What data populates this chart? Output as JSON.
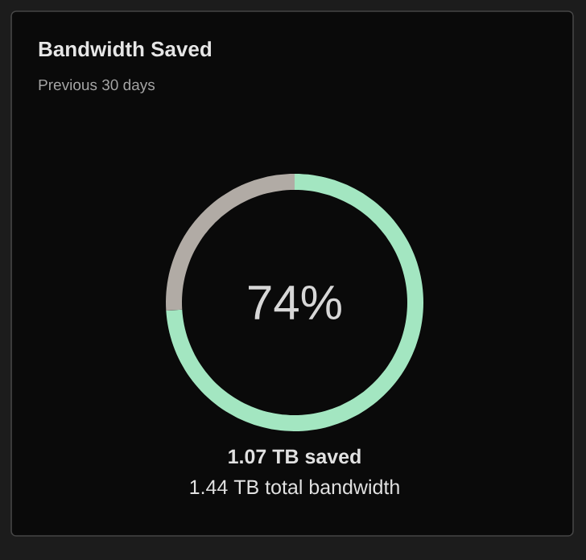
{
  "chart_data": {
    "type": "donut",
    "title": "Bandwidth Saved",
    "subtitle": "Previous 30 days",
    "categories": [
      null,
      null
    ],
    "values": [
      74,
      26
    ],
    "colors": [
      "#a3e6c1",
      "#b1aba5"
    ],
    "value_labels": [
      "74%",
      null
    ],
    "annotations": [
      "1.07 TB saved",
      "1.44 TB total bandwidth"
    ]
  }
}
